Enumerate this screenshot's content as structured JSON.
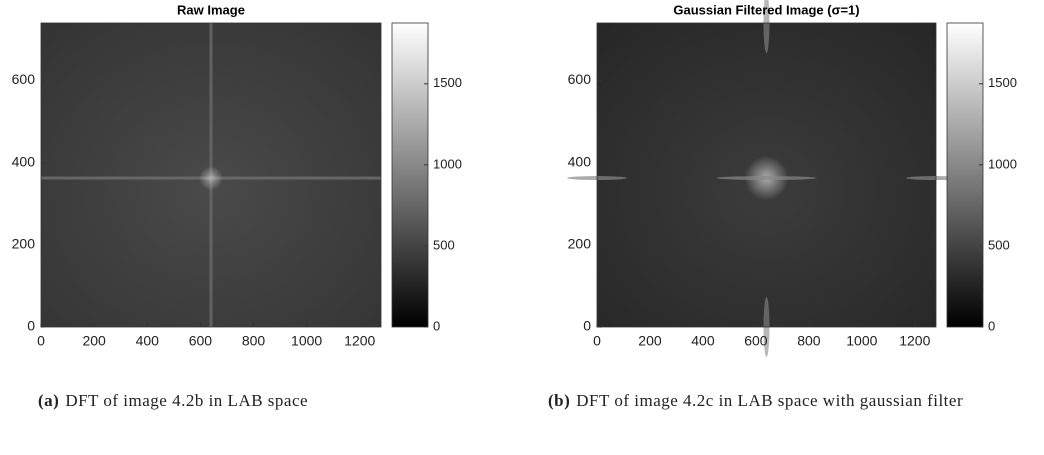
{
  "chart_data": [
    {
      "type": "image",
      "title": "Raw Image",
      "xlim": [
        0,
        1280
      ],
      "ylim": [
        0,
        740
      ],
      "xticks": [
        0,
        200,
        400,
        600,
        800,
        1000,
        1200
      ],
      "yticks": [
        0,
        200,
        400,
        600
      ],
      "clim": [
        0,
        1875
      ],
      "cticks": [
        0,
        500,
        1000,
        1500
      ]
    },
    {
      "type": "image",
      "title": "Gaussian Filtered Image (σ=1)",
      "xlim": [
        0,
        1280
      ],
      "ylim": [
        0,
        740
      ],
      "xticks": [
        0,
        200,
        400,
        600,
        800,
        1000,
        1200
      ],
      "yticks": [
        0,
        200,
        400,
        600
      ],
      "clim": [
        0,
        1875
      ],
      "cticks": [
        0,
        500,
        1000,
        1500
      ]
    }
  ],
  "captions": [
    {
      "label": "(a)",
      "text": "DFT of image 4.2b in LAB space"
    },
    {
      "label": "(b)",
      "text": "DFT of image 4.2c in LAB space with gaussian filter"
    }
  ]
}
